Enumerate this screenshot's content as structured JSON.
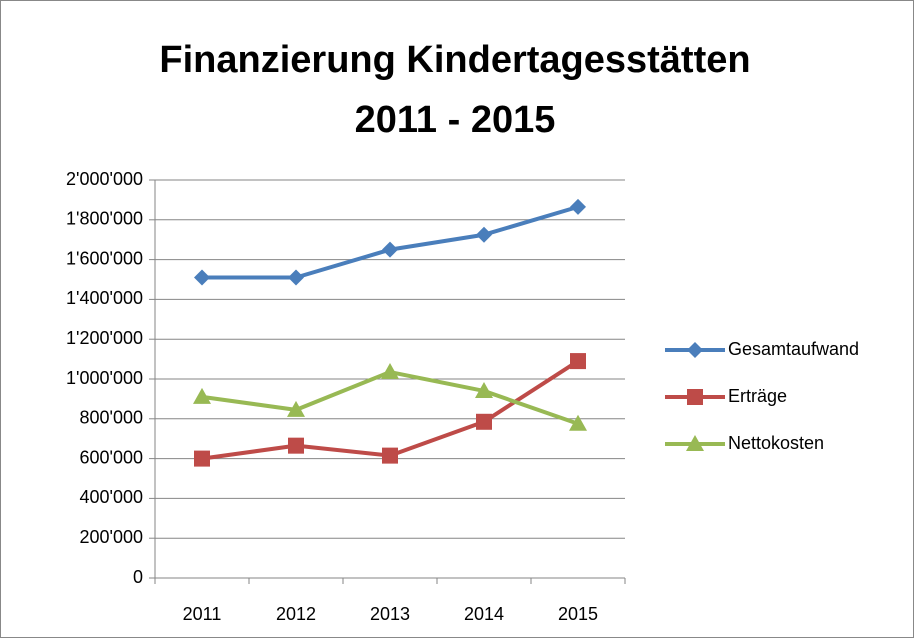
{
  "chart_data": {
    "type": "line",
    "title": [
      "Finanzierung Kindertagesstätten",
      "2011 - 2015"
    ],
    "categories": [
      "2011",
      "2012",
      "2013",
      "2014",
      "2015"
    ],
    "series": [
      {
        "name": "Gesamtaufwand",
        "color": "#4a7ebb",
        "marker": "diamond",
        "values": [
          1510000,
          1510000,
          1650000,
          1725000,
          1865000
        ]
      },
      {
        "name": "Erträge",
        "color": "#be4b48",
        "marker": "square",
        "values": [
          600000,
          665000,
          615000,
          785000,
          1090000
        ]
      },
      {
        "name": "Nettokosten",
        "color": "#98b954",
        "marker": "triangle",
        "values": [
          910000,
          845000,
          1035000,
          940000,
          775000
        ]
      }
    ],
    "ylim": [
      0,
      2000000
    ],
    "yticks": [
      0,
      {
        "value": 200000,
        "label": "200'000"
      },
      {
        "value": 400000,
        "label": "400'000"
      },
      {
        "value": 600000,
        "label": "600'000"
      },
      {
        "value": 800000,
        "label": "800'000"
      },
      {
        "value": 1000000,
        "label": "1'000'000"
      },
      {
        "value": 1200000,
        "label": "1'200'000"
      },
      {
        "value": 1400000,
        "label": "1'400'000"
      },
      {
        "value": 1600000,
        "label": "1'600'000"
      },
      {
        "value": 1800000,
        "label": "1'800'000"
      },
      {
        "value": 2000000,
        "label": "2'000'000"
      }
    ],
    "grid": true,
    "legend": "right"
  }
}
